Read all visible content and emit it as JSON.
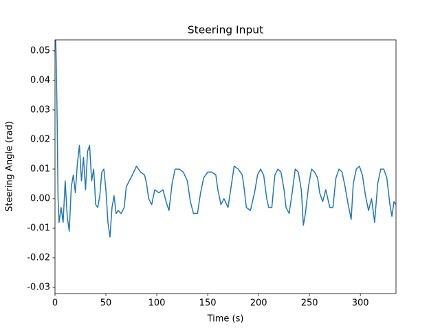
{
  "chart_data": {
    "type": "line",
    "title": "Steering Input",
    "x_label": "Time (s)",
    "y_label": "Steering Angle (rad)",
    "xlim": [
      0,
      335
    ],
    "ylim": [
      -0.0321,
      0.0537
    ],
    "xticks": [
      0,
      50,
      100,
      150,
      200,
      250,
      300
    ],
    "yticks": [
      {
        "value": -0.03,
        "label": "-0.03"
      },
      {
        "value": -0.02,
        "label": "-0.02"
      },
      {
        "value": -0.01,
        "label": "-0.01"
      },
      {
        "value": 0,
        "label": "0.00"
      },
      {
        "value": 0.01,
        "label": "0.01"
      },
      {
        "value": 0.02,
        "label": "0.02"
      },
      {
        "value": 0.03,
        "label": "0.03"
      },
      {
        "value": 0.04,
        "label": "0.04"
      },
      {
        "value": 0.05,
        "label": "0.05"
      }
    ],
    "grid": false,
    "x": [
      0,
      1,
      2,
      3,
      4,
      6,
      8,
      10,
      12,
      14,
      16,
      18,
      20,
      22,
      24,
      26,
      28,
      30,
      32,
      34,
      36,
      38,
      40,
      42,
      44,
      46,
      48,
      50,
      52,
      54,
      56,
      58,
      60,
      62,
      65,
      68,
      70,
      73,
      76,
      80,
      84,
      88,
      90,
      92,
      95,
      98,
      102,
      106,
      110,
      112,
      115,
      118,
      122,
      126,
      130,
      133,
      136,
      140,
      143,
      146,
      150,
      154,
      158,
      160,
      163,
      166,
      170,
      173,
      176,
      180,
      184,
      186,
      188,
      192,
      196,
      199,
      202,
      205,
      208,
      210,
      213,
      216,
      219,
      222,
      225,
      227,
      230,
      233,
      236,
      239,
      242,
      244,
      246,
      249,
      252,
      255,
      258,
      260,
      263,
      266,
      270,
      273,
      276,
      279,
      282,
      285,
      288,
      291,
      293,
      296,
      299,
      302,
      305,
      308,
      311,
      314,
      317,
      320,
      323,
      326,
      329,
      331,
      333,
      335
    ],
    "series": [
      {
        "color": "#1f77b4",
        "values": [
          0.06,
          0.05,
          0.03,
          0.0,
          -0.008,
          -0.003,
          -0.008,
          0.006,
          -0.006,
          -0.011,
          0.004,
          0.008,
          0.002,
          0.012,
          0.018,
          0.006,
          0.014,
          0.003,
          0.016,
          0.018,
          0.006,
          0.01,
          -0.002,
          -0.003,
          0.001,
          0.009,
          0.01,
          0.003,
          -0.008,
          -0.013,
          -0.003,
          0.001,
          -0.005,
          -0.004,
          -0.005,
          -0.003,
          0.004,
          0.006,
          0.008,
          0.011,
          0.009,
          0.008,
          0.005,
          0.0,
          -0.002,
          0.003,
          0.002,
          0.003,
          -0.002,
          -0.004,
          0.005,
          0.01,
          0.01,
          0.009,
          0.006,
          -0.001,
          -0.005,
          -0.005,
          0.002,
          0.007,
          0.009,
          0.009,
          0.008,
          0.003,
          -0.002,
          0.0,
          -0.003,
          0.004,
          0.011,
          0.01,
          0.008,
          0.003,
          -0.003,
          -0.004,
          0.002,
          0.008,
          0.01,
          0.008,
          0.0,
          -0.003,
          -0.003,
          0.008,
          0.01,
          0.009,
          0.003,
          -0.003,
          -0.005,
          0.002,
          0.01,
          0.009,
          0.003,
          -0.009,
          -0.005,
          0.004,
          0.01,
          0.009,
          0.007,
          0.002,
          -0.001,
          0.003,
          -0.003,
          -0.003,
          0.007,
          0.01,
          0.009,
          0.004,
          -0.002,
          -0.007,
          0.005,
          0.01,
          0.011,
          0.008,
          0.001,
          -0.004,
          0.0,
          -0.008,
          0.005,
          0.01,
          0.01,
          0.007,
          -0.002,
          -0.006,
          -0.001,
          -0.002
        ]
      }
    ]
  }
}
